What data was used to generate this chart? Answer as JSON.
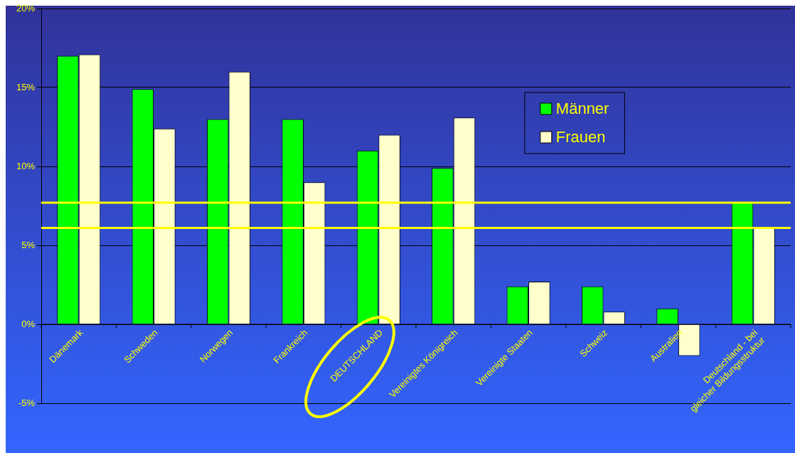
{
  "chart_data": {
    "type": "bar",
    "categories": [
      "Dänemark",
      "Schweden",
      "Norwegen",
      "Frankreich",
      "DEUTSCHLAND",
      "Vereinigtes Königreich",
      "Vereinigte Staaten",
      "Schweiz",
      "Australien",
      "Deutschland - bei gleicher Bildungsstruktur"
    ],
    "series": [
      {
        "name": "Männer",
        "color": "#00ff00",
        "values": [
          17.0,
          14.9,
          13.0,
          13.0,
          11.0,
          9.9,
          2.4,
          2.4,
          1.0,
          7.7
        ]
      },
      {
        "name": "Frauen",
        "color": "#ffffcc",
        "values": [
          17.1,
          12.4,
          16.0,
          9.0,
          12.0,
          13.1,
          2.7,
          0.8,
          -2.0,
          6.1
        ]
      }
    ],
    "ylim": [
      -5,
      20
    ],
    "yticks": [
      {
        "value": -5,
        "label": "-5%"
      },
      {
        "value": 0,
        "label": "0%"
      },
      {
        "value": 5,
        "label": "5%"
      },
      {
        "value": 10,
        "label": "10%"
      },
      {
        "value": 15,
        "label": "15%"
      },
      {
        "value": 20,
        "label": "20%"
      }
    ],
    "ref_lines": [
      {
        "axis": "y",
        "value": 7.7,
        "color": "#ffff00"
      },
      {
        "axis": "y",
        "value": 6.1,
        "color": "#ffff00"
      }
    ],
    "grid": "y",
    "legend": "top right"
  }
}
